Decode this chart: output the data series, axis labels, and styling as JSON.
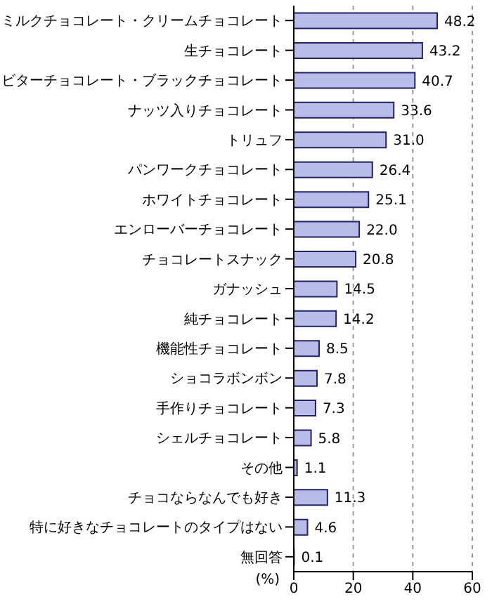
{
  "chart_data": {
    "type": "bar",
    "orientation": "horizontal",
    "xlabel": "(%)",
    "categories": [
      "ミルクチョコレート・クリームチョコレート",
      "生チョコレート",
      "ビターチョコレート・ブラックチョコレート",
      "ナッツ入りチョコレート",
      "トリュフ",
      "パンワークチョコレート",
      "ホワイトチョコレート",
      "エンローバーチョコレート",
      "チョコレートスナック",
      "ガナッシュ",
      "純チョコレート",
      "機能性チョコレート",
      "ショコラボンボン",
      "手作りチョコレート",
      "シェルチョコレート",
      "その他",
      "チョコならなんでも好き",
      "特に好きなチョコレートのタイプはない",
      "無回答"
    ],
    "values": [
      48.2,
      43.2,
      40.7,
      33.6,
      31.0,
      26.4,
      25.1,
      22.0,
      20.8,
      14.5,
      14.2,
      8.5,
      7.8,
      7.3,
      5.8,
      1.1,
      11.3,
      4.6,
      0.1
    ],
    "value_labels": [
      "48.2",
      "43.2",
      "40.7",
      "33.6",
      "31.0",
      "26.4",
      "25.1",
      "22.0",
      "20.8",
      "14.5",
      "14.2",
      "8.5",
      "7.8",
      "7.3",
      "5.8",
      "1.1",
      "11.3",
      "4.6",
      "0.1"
    ],
    "color": "#b8bce8",
    "xlim": [
      0,
      60
    ],
    "xticks": [
      0,
      20,
      40,
      60
    ],
    "grid": "x"
  }
}
